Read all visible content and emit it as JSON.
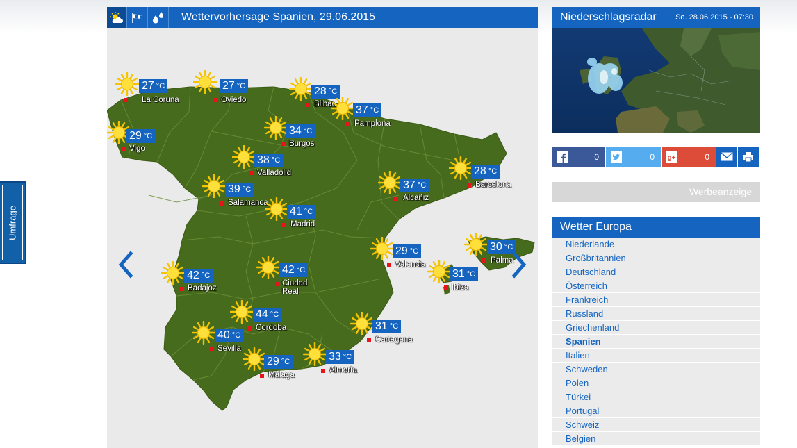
{
  "side_tab": {
    "label": "Umfrage"
  },
  "forecast": {
    "title": "Wettervorhersage Spanien, 29.06.2015",
    "unit": "°C",
    "tabs": [
      {
        "icon": "sun-cloud-icon",
        "active": true
      },
      {
        "icon": "wind-icon",
        "active": false
      },
      {
        "icon": "rain-drops-icon",
        "active": false
      }
    ],
    "cities": [
      {
        "name": "La Coruna",
        "temp": "27"
      },
      {
        "name": "Oviedo",
        "temp": "27"
      },
      {
        "name": "Bilbao",
        "temp": "28"
      },
      {
        "name": "Pamplona",
        "temp": "37"
      },
      {
        "name": "Vigo",
        "temp": "29"
      },
      {
        "name": "Burgos",
        "temp": "34"
      },
      {
        "name": "Valladolid",
        "temp": "38"
      },
      {
        "name": "Barcelona",
        "temp": "28"
      },
      {
        "name": "Salamanca",
        "temp": "39"
      },
      {
        "name": "Alcañiz",
        "temp": "37"
      },
      {
        "name": "Madrid",
        "temp": "41"
      },
      {
        "name": "Palma",
        "temp": "30"
      },
      {
        "name": "Valencia",
        "temp": "29"
      },
      {
        "name": "Ibiza",
        "temp": "31"
      },
      {
        "name": "Badajoz",
        "temp": "42"
      },
      {
        "name": "Ciudad\nReal",
        "temp": "42"
      },
      {
        "name": "Cordoba",
        "temp": "44"
      },
      {
        "name": "Cartagena",
        "temp": "31"
      },
      {
        "name": "Sevilla",
        "temp": "40"
      },
      {
        "name": "Málaga",
        "temp": "29"
      },
      {
        "name": "Almería",
        "temp": "33"
      }
    ]
  },
  "radar": {
    "title": "Niederschlagsradar",
    "date": "So. 28.06.2015 - 07:30"
  },
  "share": {
    "facebook": "0",
    "twitter": "0",
    "googleplus": "0"
  },
  "ad": {
    "label": "Werbeanzeige"
  },
  "europe": {
    "title": "Wetter Europa",
    "active": "Spanien",
    "countries": [
      "Niederlande",
      "Großbritannien",
      "Deutschland",
      "Österreich",
      "Frankreich",
      "Russland",
      "Griechenland",
      "Spanien",
      "Italien",
      "Schweden",
      "Polen",
      "Türkei",
      "Portugal",
      "Schweiz",
      "Belgien"
    ]
  },
  "colors": {
    "brand_blue": "#1565c0",
    "land_green": "#476b1c",
    "facebook": "#3b5998",
    "twitter": "#55acee",
    "googleplus": "#dd4b39"
  }
}
